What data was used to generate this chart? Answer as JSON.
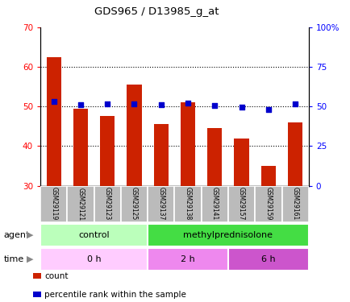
{
  "title": "GDS965 / D13985_g_at",
  "samples": [
    "GSM29119",
    "GSM29121",
    "GSM29123",
    "GSM29125",
    "GSM29137",
    "GSM29138",
    "GSM29141",
    "GSM29157",
    "GSM29159",
    "GSM29161"
  ],
  "counts": [
    62.5,
    49.5,
    47.5,
    55.5,
    45.5,
    51.0,
    44.5,
    42.0,
    35.0,
    46.0
  ],
  "percentiles": [
    53.0,
    51.0,
    51.5,
    51.5,
    51.0,
    52.0,
    50.5,
    49.5,
    48.0,
    51.5
  ],
  "ylim_left": [
    30,
    70
  ],
  "ylim_right": [
    0,
    100
  ],
  "yticks_left": [
    30,
    40,
    50,
    60,
    70
  ],
  "yticks_right": [
    0,
    25,
    50,
    75,
    100
  ],
  "bar_color": "#cc2200",
  "dot_color": "#0000cc",
  "bar_bottom": 30,
  "agent_labels": [
    {
      "text": "control",
      "span": [
        0,
        4
      ],
      "color": "#bbffbb"
    },
    {
      "text": "methylprednisolone",
      "span": [
        4,
        10
      ],
      "color": "#44dd44"
    }
  ],
  "time_labels": [
    {
      "text": "0 h",
      "span": [
        0,
        4
      ],
      "color": "#ffccff"
    },
    {
      "text": "2 h",
      "span": [
        4,
        7
      ],
      "color": "#ee88ee"
    },
    {
      "text": "6 h",
      "span": [
        7,
        10
      ],
      "color": "#cc55cc"
    }
  ],
  "legend_count_color": "#cc2200",
  "legend_pct_color": "#0000cc",
  "xlabel_agent": "agent",
  "xlabel_time": "time",
  "tick_label_bg": "#bbbbbb",
  "hgrid_vals": [
    40,
    50,
    60
  ],
  "bar_width": 0.55
}
